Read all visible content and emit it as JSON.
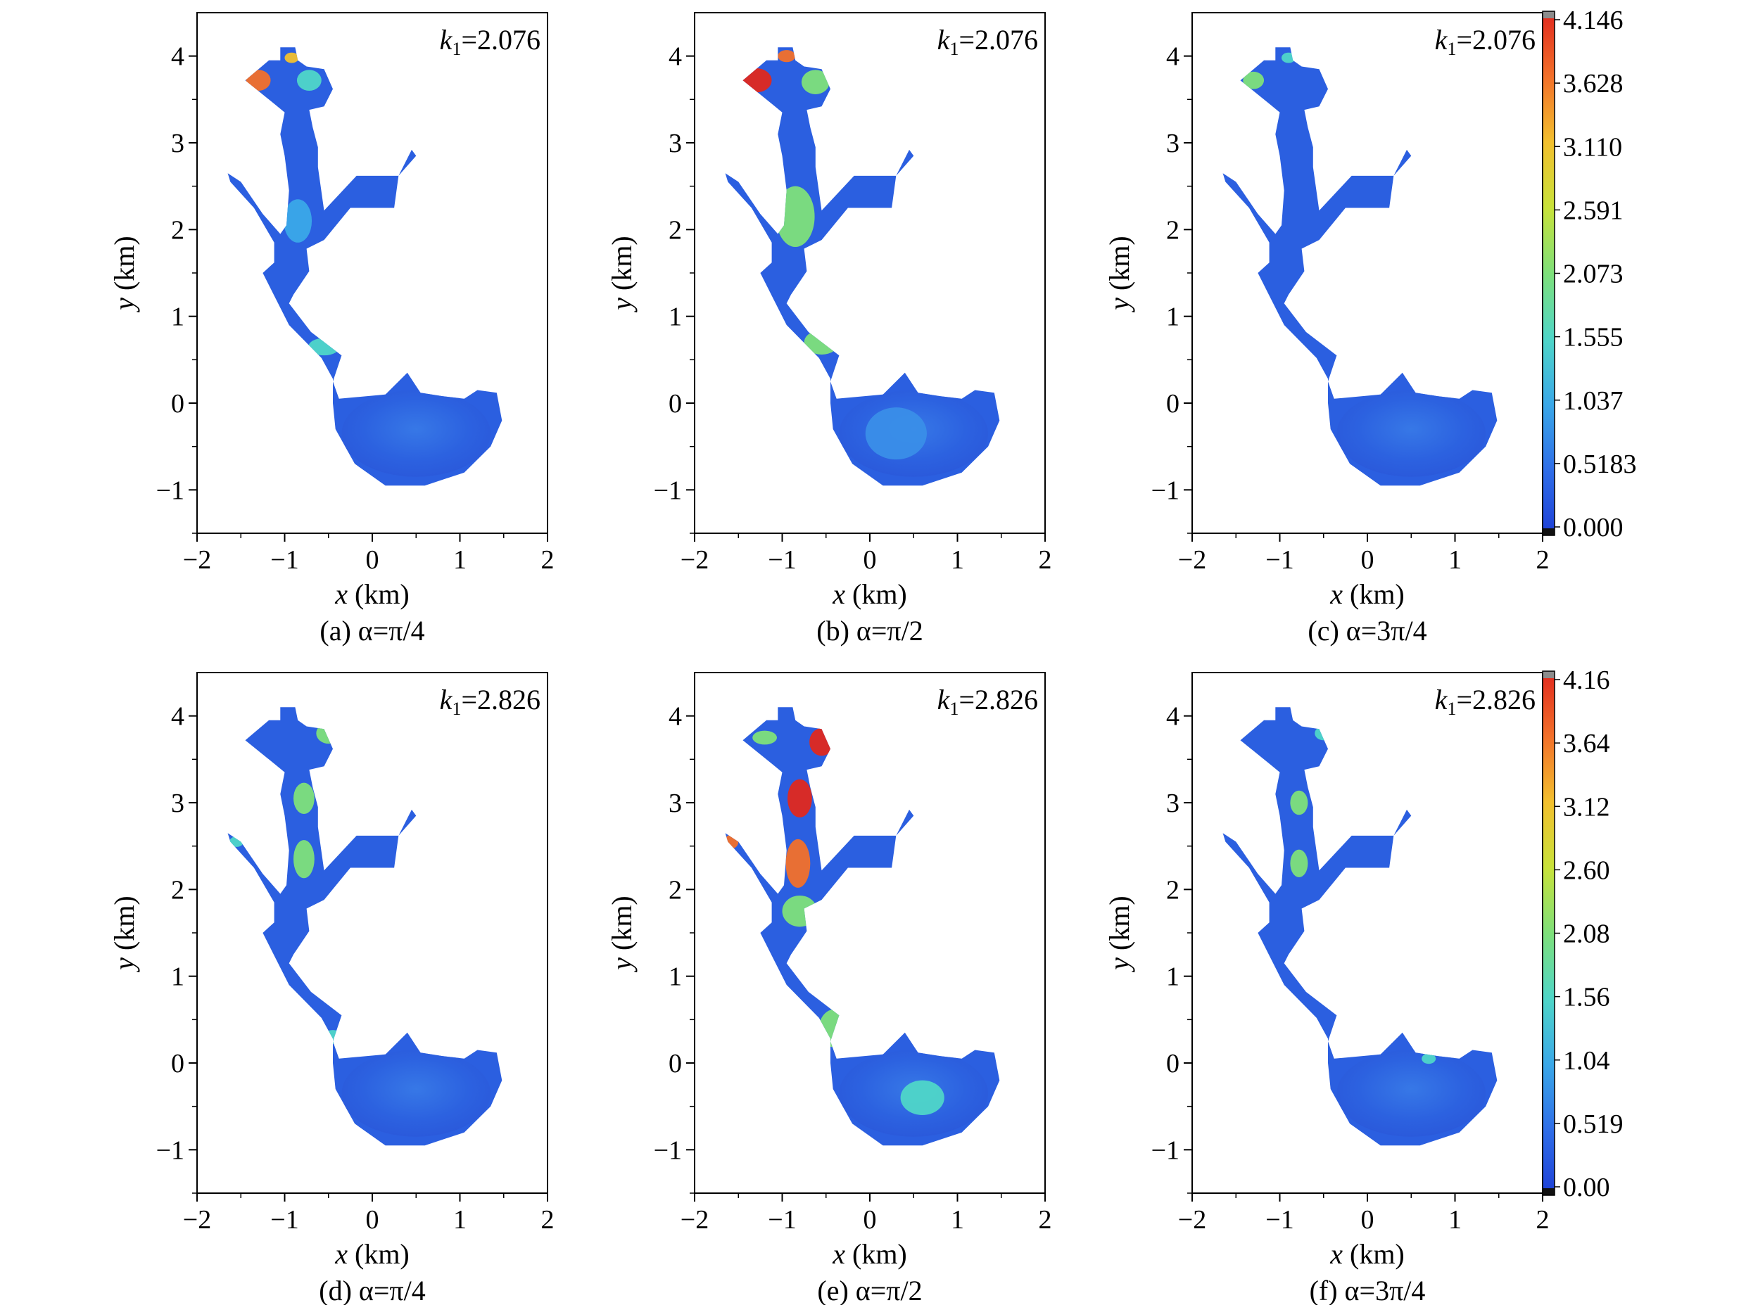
{
  "figure": {
    "panels": [
      {
        "id": "a",
        "caption": "(a) α=π/4",
        "k_label": "k",
        "k_sub": "1",
        "k_value": "=2.076",
        "row": 0,
        "col": 0,
        "hotspots": "a"
      },
      {
        "id": "b",
        "caption": "(b) α=π/2",
        "k_label": "k",
        "k_sub": "1",
        "k_value": "=2.076",
        "row": 0,
        "col": 1,
        "hotspots": "b"
      },
      {
        "id": "c",
        "caption": "(c) α=3π/4",
        "k_label": "k",
        "k_sub": "1",
        "k_value": "=2.076",
        "row": 0,
        "col": 2,
        "hotspots": "c"
      },
      {
        "id": "d",
        "caption": "(d) α=π/4",
        "k_label": "k",
        "k_sub": "1",
        "k_value": "=2.826",
        "row": 1,
        "col": 0,
        "hotspots": "d"
      },
      {
        "id": "e",
        "caption": "(e) α=π/2",
        "k_label": "k",
        "k_sub": "1",
        "k_value": "=2.826",
        "row": 1,
        "col": 1,
        "hotspots": "e"
      },
      {
        "id": "f",
        "caption": "(f) α=3π/4",
        "k_label": "k",
        "k_sub": "1",
        "k_value": "=2.826",
        "row": 1,
        "col": 2,
        "hotspots": "f"
      }
    ],
    "colorbars": [
      {
        "row": 0,
        "ticks": [
          "4.146",
          "3.628",
          "3.110",
          "2.591",
          "2.073",
          "1.555",
          "1.037",
          "0.5183",
          "0.000"
        ]
      },
      {
        "row": 1,
        "ticks": [
          "4.16",
          "3.64",
          "3.12",
          "2.60",
          "2.08",
          "1.56",
          "1.04",
          "0.519",
          "0.00"
        ]
      }
    ],
    "colormap": [
      "#1e3fd6",
      "#2f6ee8",
      "#3aa8e8",
      "#4fd6c8",
      "#7ee07a",
      "#c8e23a",
      "#f2c02e",
      "#f2702a",
      "#e0281e"
    ]
  },
  "chart_data": [
    {
      "type": "heatmap",
      "panel": "a",
      "xlabel": "x (km)",
      "ylabel": "y (km)",
      "xlim": [
        -2,
        2
      ],
      "ylim": [
        -1.5,
        4.5
      ],
      "xticks": [
        "−2",
        "−1",
        "0",
        "1",
        "2"
      ],
      "yticks": [
        "−1",
        "0",
        "1",
        "2",
        "3",
        "4"
      ],
      "annotation": "k1=2.076",
      "caption": "(a) α=π/4",
      "color_range": [
        0,
        4.146
      ]
    },
    {
      "type": "heatmap",
      "panel": "b",
      "xlabel": "x (km)",
      "ylabel": "y (km)",
      "xlim": [
        -2,
        2
      ],
      "ylim": [
        -1.5,
        4.5
      ],
      "xticks": [
        "−2",
        "−1",
        "0",
        "1",
        "2"
      ],
      "yticks": [
        "−1",
        "0",
        "1",
        "2",
        "3",
        "4"
      ],
      "annotation": "k1=2.076",
      "caption": "(b) α=π/2",
      "color_range": [
        0,
        4.146
      ]
    },
    {
      "type": "heatmap",
      "panel": "c",
      "xlabel": "x (km)",
      "ylabel": "y (km)",
      "xlim": [
        -2,
        2
      ],
      "ylim": [
        -1.5,
        4.5
      ],
      "xticks": [
        "−2",
        "−1",
        "0",
        "1",
        "2"
      ],
      "yticks": [
        "−1",
        "0",
        "1",
        "2",
        "3",
        "4"
      ],
      "annotation": "k1=2.076",
      "caption": "(c) α=3π/4",
      "color_range": [
        0,
        4.146
      ]
    },
    {
      "type": "heatmap",
      "panel": "d",
      "xlabel": "x (km)",
      "ylabel": "y (km)",
      "xlim": [
        -2,
        2
      ],
      "ylim": [
        -1.5,
        4.5
      ],
      "xticks": [
        "−2",
        "−1",
        "0",
        "1",
        "2"
      ],
      "yticks": [
        "−1",
        "0",
        "1",
        "2",
        "3",
        "4"
      ],
      "annotation": "k1=2.826",
      "caption": "(d) α=π/4",
      "color_range": [
        0,
        4.16
      ]
    },
    {
      "type": "heatmap",
      "panel": "e",
      "xlabel": "x (km)",
      "ylabel": "y (km)",
      "xlim": [
        -2,
        2
      ],
      "ylim": [
        -1.5,
        4.5
      ],
      "xticks": [
        "−2",
        "−1",
        "0",
        "1",
        "2"
      ],
      "yticks": [
        "−1",
        "0",
        "1",
        "2",
        "3",
        "4"
      ],
      "annotation": "k1=2.826",
      "caption": "(e) α=π/2",
      "color_range": [
        0,
        4.16
      ]
    },
    {
      "type": "heatmap",
      "panel": "f",
      "xlabel": "x (km)",
      "ylabel": "y (km)",
      "xlim": [
        -2,
        2
      ],
      "ylim": [
        -1.5,
        4.5
      ],
      "xticks": [
        "−2",
        "−1",
        "0",
        "1",
        "2"
      ],
      "yticks": [
        "−1",
        "0",
        "1",
        "2",
        "3",
        "4"
      ],
      "annotation": "k1=2.826",
      "caption": "(f) α=3π/4",
      "color_range": [
        0,
        4.16
      ]
    }
  ],
  "axis_labels": {
    "x_var": "x",
    "x_unit": " (km)",
    "y_var": "y",
    "y_unit": " (km)"
  }
}
